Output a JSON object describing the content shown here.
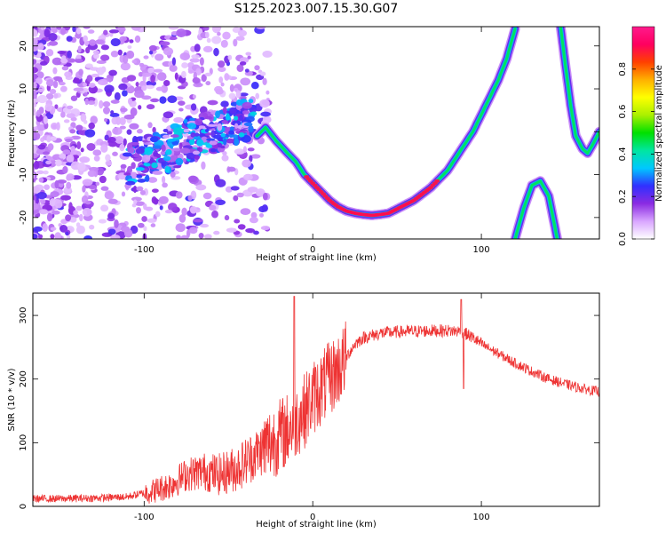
{
  "title": "S125.2023.007.15.30.G07",
  "chart_data": [
    {
      "type": "heatmap",
      "xlabel": "Height of straight line (km)",
      "ylabel": "Frequency (Hz)",
      "xlim": [
        -166,
        170
      ],
      "ylim": [
        -25,
        24.5
      ],
      "x_ticks": [
        -100,
        0,
        100
      ],
      "y_ticks": [
        20,
        10,
        0,
        -10,
        -20
      ],
      "colorbar": {
        "label": "Normalized spectral amplitude",
        "range": [
          0,
          1
        ],
        "ticks": [
          0.0,
          0.2,
          0.4,
          0.6,
          0.8
        ],
        "colors": [
          "#ffffff",
          "#d9a6ff",
          "#8a2be2",
          "#3030ff",
          "#00c8ff",
          "#00e6a0",
          "#00e000",
          "#aaf000",
          "#ffff00",
          "#ffb000",
          "#ff4000",
          "#ff0060",
          "#ff1a8c"
        ]
      },
      "traces": [
        {
          "name": "main-curve",
          "x": [
            -33,
            -28,
            -22,
            -15,
            -10,
            -5,
            0,
            5,
            10,
            15,
            20,
            25,
            30,
            35,
            40,
            45,
            50,
            55,
            60,
            65,
            70,
            75,
            80,
            85,
            90,
            95,
            100,
            105,
            110,
            115,
            120
          ],
          "y": [
            -1,
            1,
            -2,
            -5,
            -7,
            -10,
            -12,
            -14,
            -16,
            -17.5,
            -18.5,
            -19,
            -19.3,
            -19.5,
            -19.3,
            -19,
            -18,
            -17,
            -16,
            -14.5,
            -13,
            -11,
            -9,
            -6,
            -3,
            0,
            4,
            8,
            12,
            17,
            24
          ]
        },
        {
          "name": "right-curve",
          "x": [
            147,
            150,
            153,
            156,
            160,
            163,
            166,
            170
          ],
          "y": [
            24.5,
            15,
            6,
            -1,
            -4,
            -5,
            -3,
            0
          ]
        },
        {
          "name": "hump-curve",
          "x": [
            120,
            125,
            130,
            135,
            140,
            145
          ],
          "y": [
            -25,
            -18,
            -12.5,
            -11.5,
            -15,
            -25
          ]
        }
      ]
    },
    {
      "type": "line",
      "xlabel": "Height of straight line (km)",
      "ylabel": "SNR (10 * v/v)",
      "xlim": [
        -166,
        170
      ],
      "ylim": [
        0,
        335
      ],
      "x_ticks": [
        -100,
        0,
        100
      ],
      "y_ticks": [
        0,
        100,
        200,
        300
      ],
      "series": [
        {
          "color": "#ee3333",
          "x": [
            -166,
            -150,
            -130,
            -110,
            -95,
            -85,
            -75,
            -65,
            -55,
            -45,
            -35,
            -25,
            -15,
            -5,
            0,
            5,
            10,
            15,
            20,
            25,
            30,
            40,
            50,
            60,
            70,
            80,
            88,
            95,
            100,
            110,
            120,
            130,
            140,
            150,
            160,
            170
          ],
          "y": [
            12,
            12,
            13,
            15,
            24,
            33,
            50,
            55,
            50,
            60,
            80,
            100,
            120,
            150,
            170,
            185,
            200,
            215,
            235,
            255,
            265,
            272,
            274,
            275,
            276,
            276,
            275,
            265,
            255,
            240,
            225,
            212,
            200,
            192,
            185,
            180
          ]
        }
      ]
    }
  ]
}
